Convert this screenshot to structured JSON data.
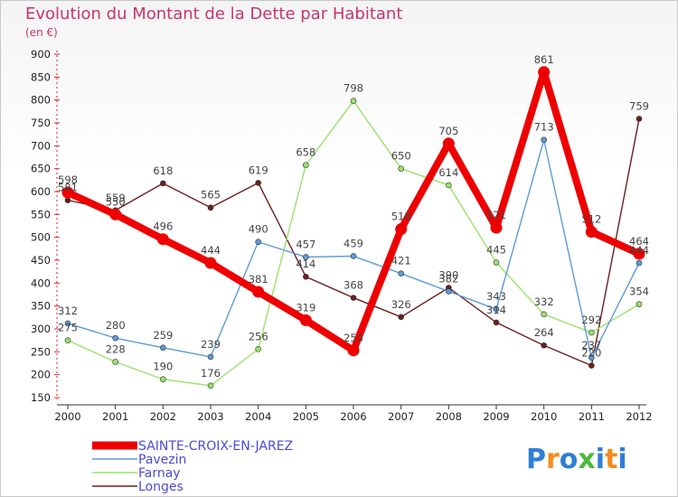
{
  "title": "Evolution du Montant de la Dette par Habitant",
  "subtitle": "(en €)",
  "logo": {
    "letters": [
      "P",
      "r",
      "o",
      "x",
      "i",
      "t",
      "i"
    ],
    "colors": [
      "#2d7fd6",
      "#f28c1f",
      "#2d7fd6",
      "#4cba3c",
      "#2d7fd6",
      "#f28c1f",
      "#2d7fd6"
    ]
  },
  "chart_data": {
    "type": "line",
    "title": "Evolution du Montant de la Dette par Habitant",
    "subtitle": "(en €)",
    "xlabel": "",
    "ylabel": "",
    "ylim": [
      150,
      900
    ],
    "yticks": [
      150,
      200,
      250,
      300,
      350,
      400,
      450,
      500,
      550,
      600,
      650,
      700,
      750,
      800,
      850,
      900
    ],
    "x": [
      "2000",
      "2001",
      "2002",
      "2003",
      "2004",
      "2005",
      "2006",
      "2007",
      "2008",
      "2009",
      "2010",
      "2011",
      "2012"
    ],
    "grid": false,
    "legend_position": "bottom-left",
    "series": [
      {
        "name": "SAINTE-CROIX-EN-JAREZ",
        "color": "#ee0000",
        "values": [
          598,
          550,
          496,
          444,
          381,
          319,
          253,
          518,
          705,
          521,
          861,
          512,
          464
        ]
      },
      {
        "name": "Pavezin",
        "color": "#5b9bd5",
        "values": [
          312,
          280,
          259,
          239,
          490,
          457,
          459,
          421,
          382,
          343,
          713,
          237,
          444
        ]
      },
      {
        "name": "Farnay",
        "color": "#99e26b",
        "values": [
          275,
          228,
          190,
          176,
          256,
          658,
          798,
          650,
          614,
          445,
          332,
          292,
          354
        ]
      },
      {
        "name": "Longes",
        "color": "#6b1f1f",
        "values": [
          581,
          559,
          618,
          565,
          619,
          414,
          368,
          326,
          390,
          314,
          264,
          220,
          759
        ]
      }
    ]
  }
}
